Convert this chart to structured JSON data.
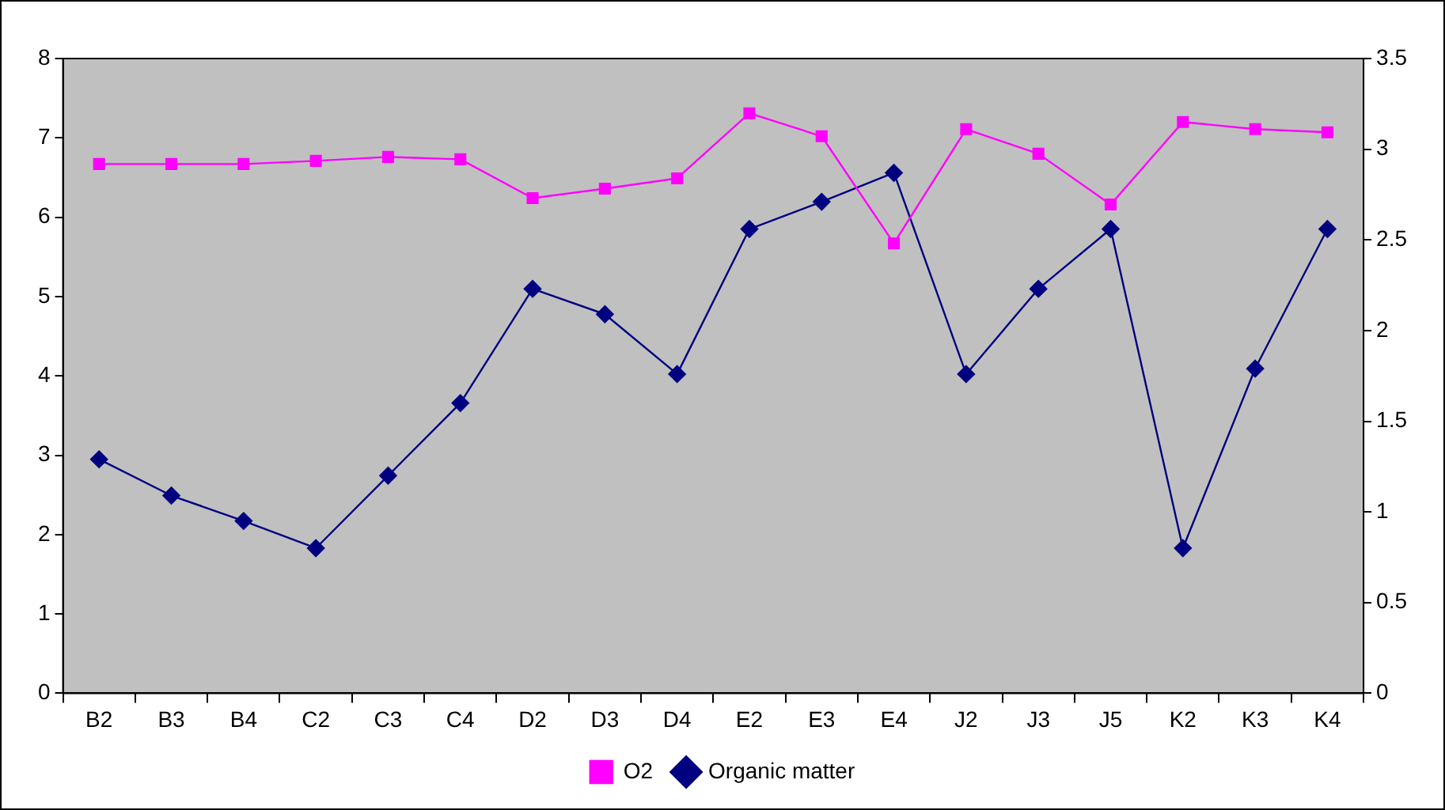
{
  "chart_data": {
    "type": "line",
    "categories": [
      "B2",
      "B3",
      "B4",
      "C2",
      "C3",
      "C4",
      "D2",
      "D3",
      "D4",
      "E2",
      "E3",
      "E4",
      "J2",
      "J3",
      "J5",
      "K2",
      "K3",
      "K4"
    ],
    "series": [
      {
        "name": "O2",
        "color": "#ff00ff",
        "marker": "square",
        "values": [
          6.67,
          6.67,
          6.67,
          6.71,
          6.76,
          6.73,
          6.24,
          6.36,
          6.49,
          7.31,
          7.02,
          5.67,
          7.11,
          6.8,
          6.16,
          7.2,
          7.11,
          7.07
        ]
      },
      {
        "name": "Organic matter",
        "color": "#000080",
        "marker": "diamond",
        "axis": "y2",
        "values": [
          1.29,
          1.09,
          0.95,
          0.8,
          1.2,
          1.6,
          2.23,
          2.09,
          1.76,
          2.56,
          2.71,
          2.87,
          1.76,
          2.23,
          2.56,
          0.8,
          1.79,
          2.56
        ]
      }
    ],
    "ylim": [
      0,
      8
    ],
    "yticks": [
      0,
      1,
      2,
      3,
      4,
      5,
      6,
      7,
      8
    ],
    "y2lim": [
      0,
      3.5
    ],
    "y2ticks": [
      0,
      0.5,
      1,
      1.5,
      2,
      2.5,
      3,
      3.5
    ],
    "grid": false,
    "legend": "bottom",
    "line_style": "solid"
  }
}
